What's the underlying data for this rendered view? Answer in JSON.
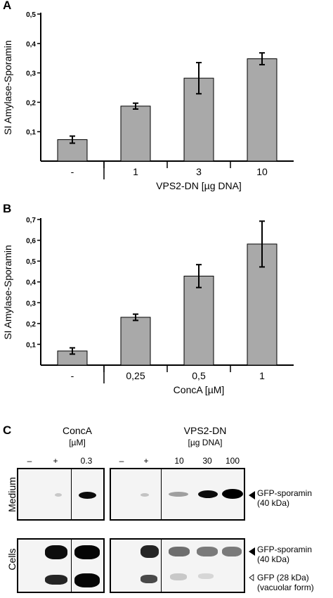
{
  "chart_data": [
    {
      "type": "bar",
      "panel": "A",
      "ylabel": "SI Amylase-Sporamin",
      "xlabel": "VPS2-DN [µg DNA]",
      "categories": [
        "-",
        "1",
        "3",
        "10"
      ],
      "values": [
        0.073,
        0.187,
        0.282,
        0.348
      ],
      "errors": [
        0.012,
        0.01,
        0.053,
        0.02
      ],
      "ylim": [
        0,
        0.5
      ],
      "yticks": [
        "0,1",
        "0,2",
        "0,3",
        "0,4",
        "0,5"
      ],
      "ytick_values": [
        0.1,
        0.2,
        0.3,
        0.4,
        0.5
      ],
      "bar_color": "#a9a9a9"
    },
    {
      "type": "bar",
      "panel": "B",
      "ylabel": "SI Amylase-Sporamin",
      "xlabel": "ConcA [µM]",
      "categories": [
        "-",
        "0,25",
        "0,5",
        "1"
      ],
      "values": [
        0.068,
        0.23,
        0.428,
        0.582
      ],
      "errors": [
        0.015,
        0.015,
        0.055,
        0.11
      ],
      "ylim": [
        0,
        0.7
      ],
      "yticks": [
        "0,1",
        "0,2",
        "0,3",
        "0,4",
        "0,5",
        "0,6",
        "0,7"
      ],
      "ytick_values": [
        0.1,
        0.2,
        0.3,
        0.4,
        0.5,
        0.6,
        0.7
      ],
      "bar_color": "#a9a9a9"
    }
  ],
  "panel_c": {
    "letter": "C",
    "conca_label": "ConcA",
    "conca_unit": "[µM]",
    "conca_lanes": [
      "–",
      "+",
      "0.3"
    ],
    "vps_label": "VPS2-DN",
    "vps_unit": "[µg DNA]",
    "vps_lanes": [
      "–",
      "+",
      "10",
      "30",
      "100"
    ],
    "row_medium": "Medium",
    "row_cells": "Cells",
    "gfp_sporamin": "GFP-sporamin",
    "kda40": "(40 kDa)",
    "gfp28": "GFP (28 kDa)",
    "vacuolar": "(vacuolar form)"
  }
}
